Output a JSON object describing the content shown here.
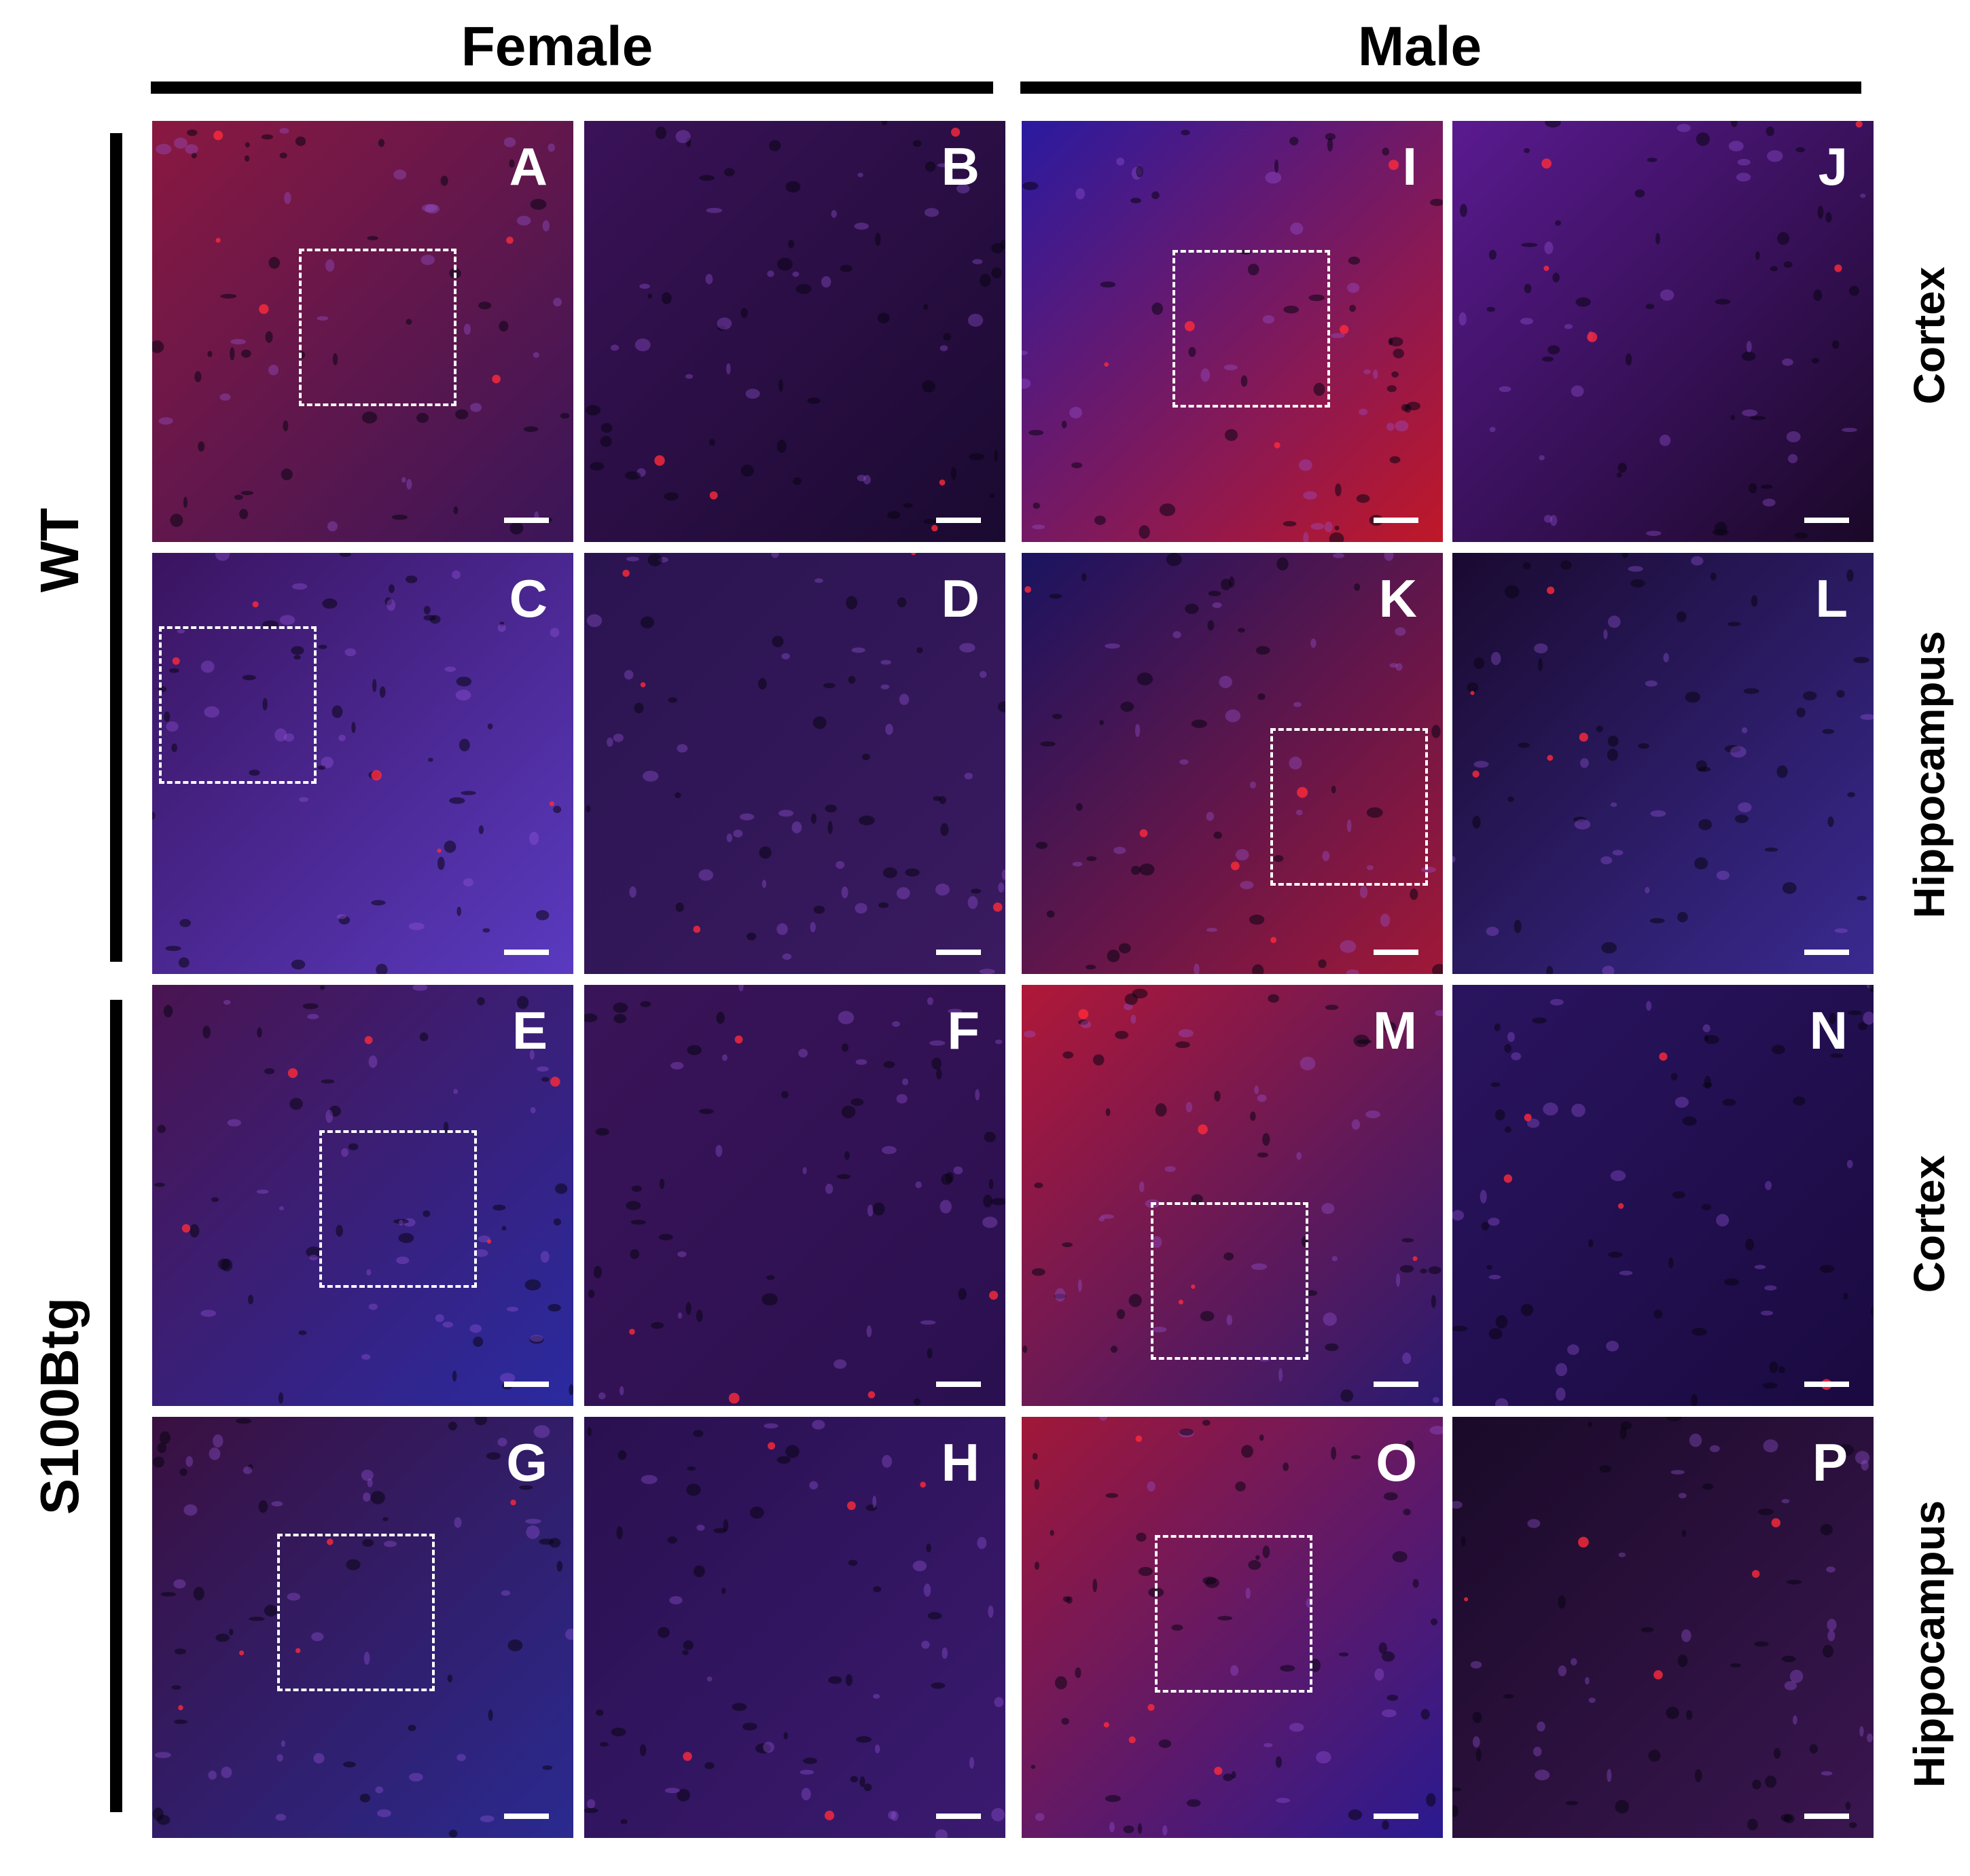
{
  "columns": {
    "female": "Female",
    "male": "Male"
  },
  "rows": {
    "wt": "WT",
    "tg": "S100Btg"
  },
  "regions": {
    "cortex_1": "Cortex",
    "hippo_1": "Hippocampus",
    "cortex_2": "Cortex",
    "hippo_2": "Hippocampus"
  },
  "colors": {
    "background": "#ffffff",
    "label": "#000000",
    "overlay": "#ffffff",
    "stain_red": "#c0183a",
    "stain_blue": "#3a2bb0"
  },
  "panels": [
    {
      "id": "A",
      "label": "A",
      "color_a": "#8a1840",
      "color_b": "#3a1658"
    },
    {
      "id": "B",
      "label": "B",
      "color_a": "#3a1258",
      "color_b": "#1a0a30"
    },
    {
      "id": "I",
      "label": "I",
      "color_a": "#2a1aa0",
      "color_b": "#c01828"
    },
    {
      "id": "J",
      "label": "J",
      "color_a": "#5a1a90",
      "color_b": "#1a0828"
    },
    {
      "id": "C",
      "label": "C",
      "color_a": "#3a1460",
      "color_b": "#5a3ac0"
    },
    {
      "id": "D",
      "label": "D",
      "color_a": "#2a1450",
      "color_b": "#3a1a60"
    },
    {
      "id": "K",
      "label": "K",
      "color_a": "#1a1460",
      "color_b": "#a01838"
    },
    {
      "id": "L",
      "label": "L",
      "color_a": "#1a0a30",
      "color_b": "#3a2a90"
    },
    {
      "id": "E",
      "label": "E",
      "color_a": "#4a1450",
      "color_b": "#2a2aa0"
    },
    {
      "id": "F",
      "label": "F",
      "color_a": "#3a1458",
      "color_b": "#2a1050"
    },
    {
      "id": "M",
      "label": "M",
      "color_a": "#b01838",
      "color_b": "#2a1a70"
    },
    {
      "id": "N",
      "label": "N",
      "color_a": "#2a1460",
      "color_b": "#1a0a40"
    },
    {
      "id": "G",
      "label": "G",
      "color_a": "#3a1040",
      "color_b": "#2a2a90"
    },
    {
      "id": "H",
      "label": "H",
      "color_a": "#2a1050",
      "color_b": "#3a1a70"
    },
    {
      "id": "O",
      "label": "O",
      "color_a": "#a01838",
      "color_b": "#2a1a90"
    },
    {
      "id": "P",
      "label": "P",
      "color_a": "#1a0a28",
      "color_b": "#3a1650"
    }
  ]
}
